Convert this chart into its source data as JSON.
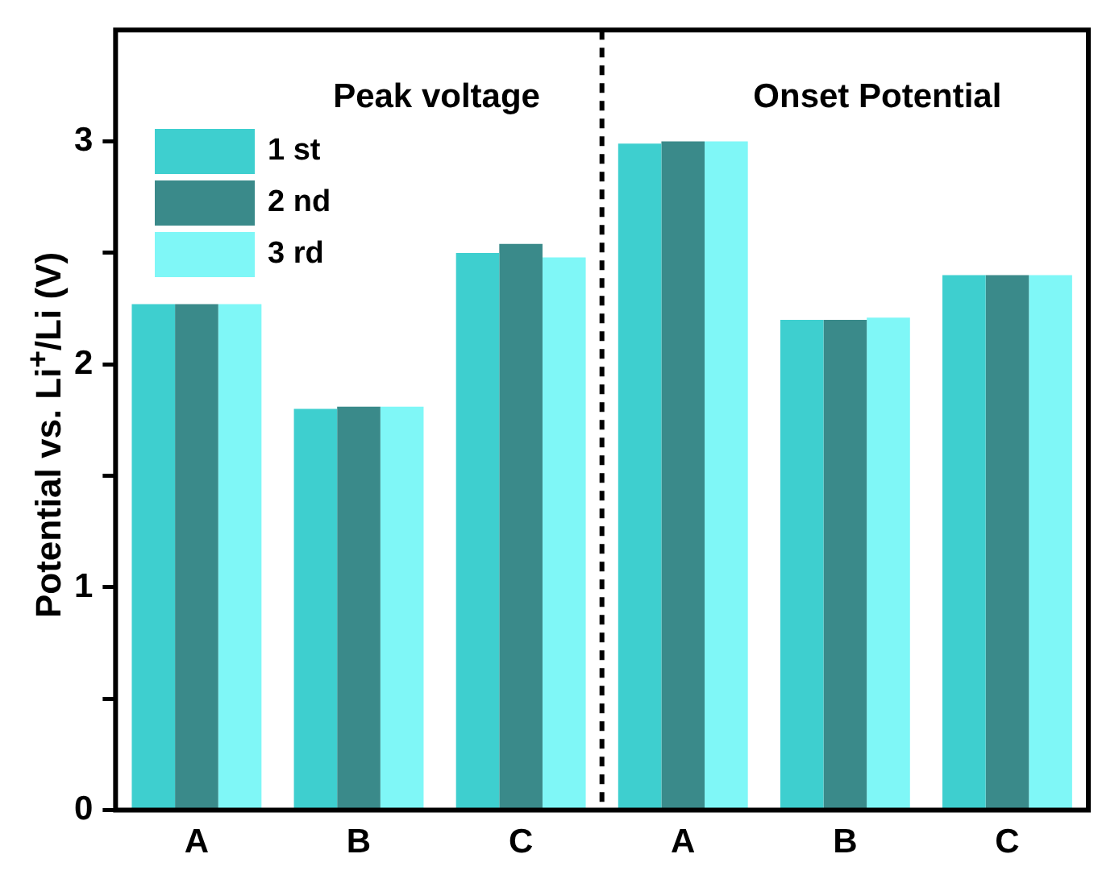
{
  "chart_data": {
    "type": "bar",
    "ylabel": "Potential vs. Li$^{+}$/Li (V)",
    "categories": [
      "A",
      "B",
      "C",
      "A",
      "B",
      "C"
    ],
    "series": [
      {
        "name": "1 st",
        "color": "#3ecfcf",
        "values": [
          2.27,
          1.8,
          2.5,
          2.99,
          2.2,
          2.4
        ]
      },
      {
        "name": "2 nd",
        "color": "#3a8a8a",
        "values": [
          2.27,
          1.81,
          2.54,
          3.0,
          2.2,
          2.4
        ]
      },
      {
        "name": "3 rd",
        "color": "#7ff7f7",
        "values": [
          2.27,
          1.81,
          2.48,
          3.0,
          2.21,
          2.4
        ]
      }
    ],
    "ylim": [
      0,
      3.5
    ],
    "yticks": [
      0,
      {
        "value": 0.5,
        "label": null
      },
      1,
      {
        "value": 1.5,
        "label": null
      },
      2,
      {
        "value": 2.5,
        "label": null
      },
      3
    ],
    "annotations": [
      "Peak voltage",
      "Onset Potential"
    ],
    "legend": "top left",
    "grid": false
  }
}
